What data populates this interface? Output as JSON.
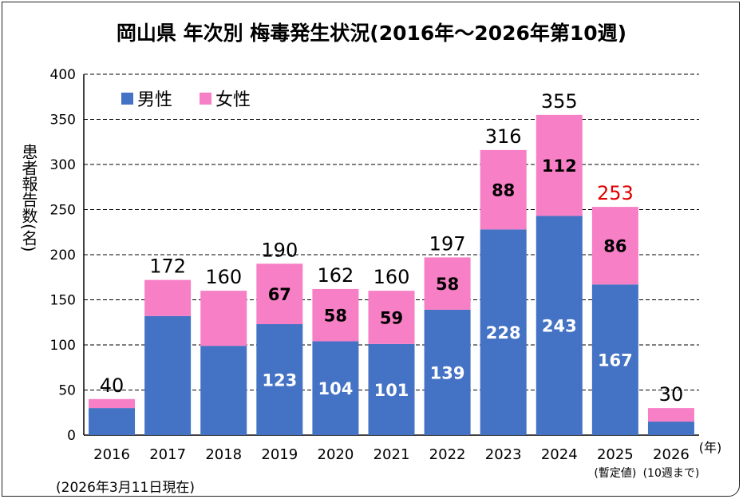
{
  "chart_data": {
    "type": "bar",
    "stacked": true,
    "title": "岡山県 年次別 梅毒発生状況(2016年～2026年第10週)",
    "ylabel": "患者報告数(名)",
    "xlabel": "(年)",
    "ylim": [
      0,
      400
    ],
    "yticks": [
      0,
      50,
      100,
      150,
      200,
      250,
      300,
      350,
      400
    ],
    "grid": true,
    "legend": "top-left",
    "categories": [
      "2016",
      "2017",
      "2018",
      "2019",
      "2020",
      "2021",
      "2022",
      "2023",
      "2024",
      "2025",
      "2026"
    ],
    "category_sublabels": {
      "2025": "(暫定値)",
      "2026": "(10週まで)"
    },
    "series": [
      {
        "name": "男性",
        "color": "#4472C4",
        "values": [
          30,
          132,
          99,
          123,
          104,
          101,
          139,
          228,
          243,
          167,
          15
        ],
        "labels": [
          null,
          null,
          null,
          "123",
          "104",
          "101",
          "139",
          "228",
          "243",
          "167",
          null
        ]
      },
      {
        "name": "女性",
        "color": "#F77FC6",
        "values": [
          10,
          40,
          61,
          67,
          58,
          59,
          58,
          88,
          112,
          86,
          15
        ],
        "labels": [
          null,
          null,
          null,
          "67",
          "58",
          "59",
          "58",
          "88",
          "112",
          "86",
          null
        ]
      }
    ],
    "totals": [
      "40",
      "172",
      "160",
      "190",
      "162",
      "160",
      "197",
      "316",
      "355",
      "253",
      "30"
    ],
    "highlight_total_color": {
      "2025": "#E00000"
    }
  },
  "note": "(2026年3月11日現在)"
}
